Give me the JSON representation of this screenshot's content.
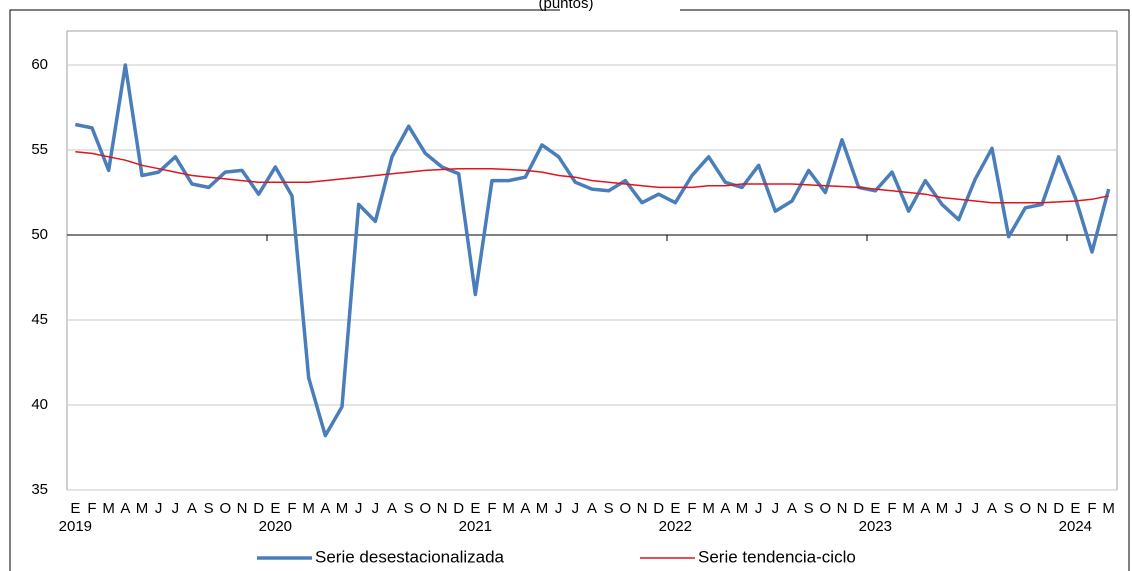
{
  "chart_data": {
    "type": "line",
    "title": "(puntos)",
    "categories": [
      "E",
      "F",
      "M",
      "A",
      "M",
      "J",
      "J",
      "A",
      "S",
      "O",
      "N",
      "D",
      "E",
      "F",
      "M",
      "A",
      "M",
      "J",
      "J",
      "A",
      "S",
      "O",
      "N",
      "D",
      "E",
      "F",
      "M",
      "A",
      "M",
      "J",
      "J",
      "A",
      "S",
      "O",
      "N",
      "D",
      "E",
      "F",
      "M",
      "A",
      "M",
      "J",
      "J",
      "A",
      "S",
      "O",
      "N",
      "D",
      "E",
      "F",
      "M",
      "A",
      "M",
      "J",
      "J",
      "A",
      "S",
      "O",
      "N",
      "D",
      "E",
      "F",
      "M"
    ],
    "years": [
      "2019",
      null,
      null,
      null,
      null,
      null,
      null,
      null,
      null,
      null,
      null,
      null,
      "2020",
      null,
      null,
      null,
      null,
      null,
      null,
      null,
      null,
      null,
      null,
      null,
      "2021",
      null,
      null,
      null,
      null,
      null,
      null,
      null,
      null,
      null,
      null,
      null,
      "2022",
      null,
      null,
      null,
      null,
      null,
      null,
      null,
      null,
      null,
      null,
      null,
      "2023",
      null,
      null,
      null,
      null,
      null,
      null,
      null,
      null,
      null,
      null,
      null,
      "2024",
      null,
      null
    ],
    "series": [
      {
        "name": "Serie desestacionalizada",
        "color": "#4a7ebb",
        "width": 3.5,
        "values": [
          56.5,
          56.3,
          53.8,
          60.0,
          53.5,
          53.7,
          54.6,
          53.0,
          52.8,
          53.7,
          53.8,
          52.4,
          54.0,
          52.3,
          41.6,
          38.2,
          39.9,
          51.8,
          50.8,
          54.6,
          56.4,
          54.8,
          54.0,
          53.6,
          46.5,
          53.2,
          53.2,
          53.4,
          55.3,
          54.6,
          53.1,
          52.7,
          52.6,
          53.2,
          51.9,
          52.4,
          51.9,
          53.5,
          54.6,
          53.1,
          52.8,
          54.1,
          51.4,
          52.0,
          53.8,
          52.5,
          55.6,
          52.8,
          52.6,
          53.7,
          51.4,
          53.2,
          51.8,
          50.9,
          53.3,
          55.1,
          49.9,
          51.6,
          51.8,
          54.6,
          52.2,
          49.0,
          52.7
        ]
      },
      {
        "name": "Serie tendencia-ciclo",
        "color": "#e0141e",
        "width": 1.5,
        "values": [
          54.9,
          54.8,
          54.6,
          54.4,
          54.1,
          53.9,
          53.7,
          53.5,
          53.4,
          53.3,
          53.2,
          53.1,
          53.1,
          53.1,
          53.1,
          53.2,
          53.3,
          53.4,
          53.5,
          53.6,
          53.7,
          53.8,
          53.85,
          53.9,
          53.9,
          53.9,
          53.85,
          53.8,
          53.7,
          53.5,
          53.4,
          53.2,
          53.1,
          53.0,
          52.9,
          52.8,
          52.8,
          52.8,
          52.9,
          52.9,
          53.0,
          53.0,
          53.0,
          53.0,
          52.95,
          52.9,
          52.85,
          52.8,
          52.7,
          52.6,
          52.5,
          52.4,
          52.2,
          52.1,
          52.0,
          51.9,
          51.9,
          51.9,
          51.9,
          51.95,
          52.0,
          52.1,
          52.3
        ]
      }
    ],
    "ylim": [
      35,
      62
    ],
    "yticks": [
      35,
      40,
      45,
      50,
      55,
      60
    ],
    "xaxis_crosses": 50,
    "grid": true,
    "legend": "bottom"
  }
}
